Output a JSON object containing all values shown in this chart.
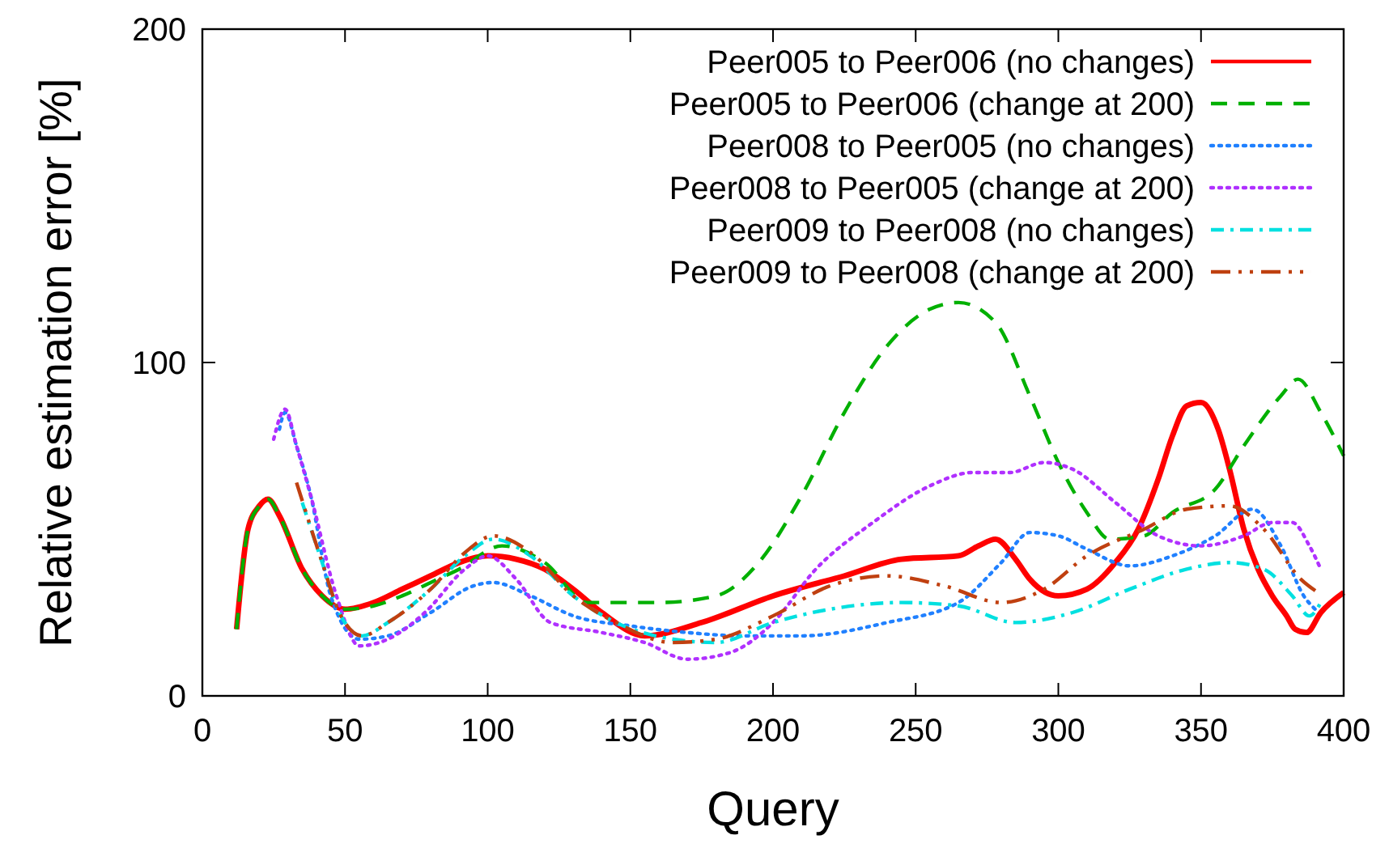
{
  "chart_data": {
    "type": "line",
    "xlabel": "Query",
    "ylabel": "Relative estimation error [%]",
    "xlim": [
      0,
      400
    ],
    "ylim": [
      0,
      200
    ],
    "xticks": [
      0,
      50,
      100,
      150,
      200,
      250,
      300,
      350,
      400
    ],
    "yticks": [
      0,
      100,
      200
    ],
    "legend": "top right",
    "grid": false,
    "marker": "none",
    "series": [
      {
        "name": "Peer005 to Peer006 (no changes)",
        "color": "#ff0000",
        "line_style": "solid",
        "x": [
          12,
          16,
          20,
          23,
          27,
          35,
          42,
          50,
          60,
          70,
          80,
          90,
          100,
          110,
          120,
          130,
          140,
          155,
          175,
          200,
          225,
          245,
          265,
          272,
          278,
          285,
          290,
          300,
          310,
          320,
          328,
          335,
          340,
          345,
          350,
          356,
          360,
          365,
          370,
          375,
          380,
          383,
          387,
          392,
          400
        ],
        "values": [
          20,
          50,
          57,
          59,
          54,
          38,
          30,
          26,
          28,
          32,
          36,
          40,
          42,
          41,
          38,
          32,
          25,
          18,
          22,
          30,
          36,
          41,
          42,
          45,
          47,
          41,
          35,
          30,
          32,
          40,
          50,
          65,
          78,
          87,
          88,
          80,
          68,
          50,
          38,
          30,
          24,
          20,
          19,
          25,
          31
        ]
      },
      {
        "name": "Peer005 to Peer006 (change at 200)",
        "color": "#00b000",
        "line_style": "dashed",
        "x": [
          12,
          16,
          20,
          23,
          27,
          35,
          42,
          50,
          60,
          70,
          80,
          90,
          105,
          120,
          135,
          160,
          180,
          195,
          210,
          225,
          240,
          255,
          265,
          278,
          290,
          300,
          310,
          318,
          330,
          340,
          355,
          365,
          378,
          384,
          392,
          400
        ],
        "values": [
          20,
          50,
          57,
          59,
          54,
          38,
          30,
          26,
          27,
          30,
          34,
          38,
          45,
          40,
          28,
          28,
          30,
          40,
          60,
          85,
          105,
          116,
          118,
          112,
          90,
          70,
          55,
          47,
          48,
          55,
          62,
          75,
          90,
          95,
          85,
          72
        ]
      },
      {
        "name": "Peer008 to Peer005 (no changes)",
        "color": "#2080ff",
        "line_style": "dotted",
        "x": [
          27,
          29,
          33,
          38,
          45,
          55,
          65,
          80,
          95,
          102,
          115,
          130,
          150,
          170,
          190,
          210,
          240,
          265,
          280,
          290,
          300,
          310,
          325,
          340,
          355,
          368,
          378,
          386,
          390
        ],
        "values": [
          80,
          85,
          75,
          60,
          30,
          17,
          18,
          25,
          33,
          34,
          30,
          24,
          21,
          19,
          18,
          18,
          22,
          28,
          40,
          49,
          48,
          44,
          39,
          42,
          48,
          56,
          45,
          30,
          26
        ]
      },
      {
        "name": "Peer008 to Peer005 (change at 200)",
        "color": "#b030ff",
        "line_style": "dotted",
        "x": [
          25,
          29,
          33,
          38,
          47,
          55,
          65,
          78,
          92,
          100,
          110,
          122,
          140,
          155,
          170,
          185,
          200,
          215,
          235,
          255,
          270,
          283,
          295,
          305,
          320,
          335,
          350,
          365,
          375,
          382,
          388,
          392
        ],
        "values": [
          77,
          86,
          75,
          60,
          30,
          15,
          17,
          25,
          38,
          42,
          35,
          22,
          19,
          16,
          11,
          13,
          22,
          38,
          52,
          63,
          67,
          67,
          70,
          68,
          58,
          48,
          45,
          48,
          52,
          52,
          45,
          38
        ]
      },
      {
        "name": "Peer009 to Peer008 (no changes)",
        "color": "#00e0e0",
        "line_style": "dashdot",
        "x": [
          35,
          42,
          48,
          56,
          65,
          80,
          92,
          102,
          115,
          130,
          145,
          165,
          180,
          200,
          220,
          245,
          265,
          285,
          305,
          325,
          345,
          360,
          372,
          382,
          388,
          392
        ],
        "values": [
          58,
          40,
          25,
          18,
          22,
          32,
          42,
          47,
          42,
          30,
          22,
          17,
          16,
          22,
          26,
          28,
          27,
          22,
          25,
          32,
          38,
          40,
          38,
          30,
          24,
          28
        ]
      },
      {
        "name": "Peer009 to Peer008 (change at 200)",
        "color": "#c04010",
        "line_style": "dashdotdot",
        "x": [
          33,
          42,
          48,
          56,
          65,
          80,
          92,
          102,
          115,
          130,
          145,
          165,
          180,
          200,
          220,
          240,
          260,
          280,
          295,
          310,
          330,
          345,
          360,
          372,
          385,
          391
        ],
        "values": [
          64,
          40,
          25,
          18,
          22,
          32,
          43,
          48,
          43,
          30,
          22,
          16,
          17,
          24,
          33,
          36,
          33,
          28,
          32,
          42,
          50,
          56,
          57,
          50,
          35,
          31
        ]
      }
    ]
  }
}
